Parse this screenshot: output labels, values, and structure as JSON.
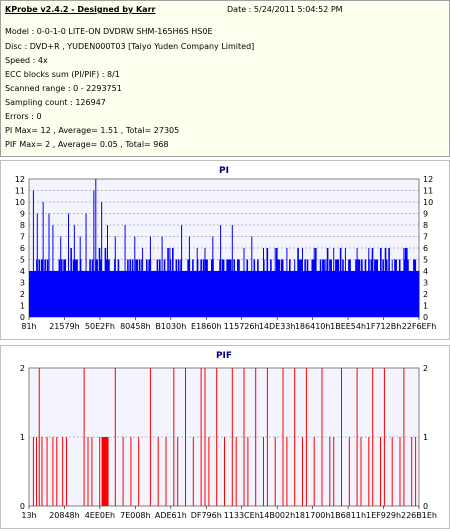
{
  "app_title": "KProbe v2.4.2 - Designed by Karr",
  "date_line": "Date : 5/24/2011 5:04:52 PM",
  "info_lines": [
    "Model : 0-0-1-0 LITE-ON DVDRW SHM-165H6S HS0E",
    "Disc : DVD+R , YUDEN000T03 [Taiyo Yuden Company Limited]",
    "Speed : 4x",
    "ECC blocks sum (PI/PIF) : 8/1",
    "Scanned range : 0 - 2293751",
    "Sampling count : 126947",
    "Errors : 0",
    "PI Max= 12 , Average= 1.51 , Total= 27305",
    "PIF Max= 2 , Average= 0.05 , Total= 968"
  ],
  "colors": {
    "pi_bar": "#0000ff",
    "pif_bar": "#ff0000",
    "axis_title": "#000080",
    "plot_bg": "#f4f4ff"
  },
  "chart_data": [
    {
      "type": "bar",
      "title": "PI",
      "ylim": [
        0,
        12
      ],
      "yticks": [
        0,
        1,
        2,
        3,
        4,
        5,
        6,
        7,
        8,
        9,
        10,
        11,
        12
      ],
      "grid": true,
      "xtick_labels": [
        "81h",
        "21579h",
        "50E2Fh",
        "80458h",
        "B1030h",
        "E1860h",
        "115726h",
        "14DE33h",
        "186410h",
        "1BEE54h",
        "1F712Bh",
        "22F6EFh"
      ],
      "x_range_hex": [
        "81h",
        "22F6EFh"
      ],
      "baseline_values": [
        4,
        4,
        5
      ],
      "max": 12,
      "average": 1.51,
      "peaks": [
        {
          "pos": 0.01,
          "v": 11
        },
        {
          "pos": 0.02,
          "v": 9
        },
        {
          "pos": 0.035,
          "v": 10
        },
        {
          "pos": 0.05,
          "v": 9
        },
        {
          "pos": 0.06,
          "v": 8
        },
        {
          "pos": 0.08,
          "v": 7
        },
        {
          "pos": 0.1,
          "v": 9
        },
        {
          "pos": 0.115,
          "v": 8
        },
        {
          "pos": 0.13,
          "v": 7
        },
        {
          "pos": 0.145,
          "v": 9
        },
        {
          "pos": 0.165,
          "v": 11
        },
        {
          "pos": 0.17,
          "v": 12
        },
        {
          "pos": 0.185,
          "v": 10
        },
        {
          "pos": 0.2,
          "v": 8
        },
        {
          "pos": 0.22,
          "v": 7
        },
        {
          "pos": 0.245,
          "v": 8
        },
        {
          "pos": 0.27,
          "v": 7
        },
        {
          "pos": 0.29,
          "v": 6
        },
        {
          "pos": 0.31,
          "v": 7
        },
        {
          "pos": 0.34,
          "v": 7
        },
        {
          "pos": 0.36,
          "v": 6
        },
        {
          "pos": 0.39,
          "v": 8
        },
        {
          "pos": 0.41,
          "v": 7
        },
        {
          "pos": 0.43,
          "v": 6
        },
        {
          "pos": 0.45,
          "v": 6
        },
        {
          "pos": 0.47,
          "v": 7
        },
        {
          "pos": 0.49,
          "v": 8
        },
        {
          "pos": 0.52,
          "v": 8
        },
        {
          "pos": 0.55,
          "v": 6
        },
        {
          "pos": 0.57,
          "v": 7
        },
        {
          "pos": 0.6,
          "v": 6
        },
        {
          "pos": 0.63,
          "v": 6
        },
        {
          "pos": 0.66,
          "v": 6
        },
        {
          "pos": 0.68,
          "v": 5
        },
        {
          "pos": 0.7,
          "v": 6
        },
        {
          "pos": 0.73,
          "v": 6
        },
        {
          "pos": 0.76,
          "v": 5
        },
        {
          "pos": 0.78,
          "v": 6
        },
        {
          "pos": 0.81,
          "v": 6
        },
        {
          "pos": 0.84,
          "v": 6
        },
        {
          "pos": 0.87,
          "v": 6
        },
        {
          "pos": 0.9,
          "v": 5
        },
        {
          "pos": 0.93,
          "v": 5
        },
        {
          "pos": 0.96,
          "v": 6
        },
        {
          "pos": 0.99,
          "v": 5
        }
      ]
    },
    {
      "type": "bar",
      "title": "PIF",
      "ylim": [
        0,
        2
      ],
      "yticks": [
        0,
        1,
        2
      ],
      "grid": true,
      "xtick_labels": [
        "13h",
        "20848h",
        "4EE0Eh",
        "7E008h",
        "ADE61h",
        "DF796h",
        "1133CEh",
        "14B002h",
        "181700h",
        "1B6811h",
        "1EF929h",
        "226B1Eh"
      ],
      "x_range_hex": [
        "13h",
        "226B1Eh"
      ],
      "max": 2,
      "average": 0.05,
      "bars": [
        {
          "pos": 0.01,
          "v": 1
        },
        {
          "pos": 0.018,
          "v": 1
        },
        {
          "pos": 0.025,
          "v": 2
        },
        {
          "pos": 0.032,
          "v": 1
        },
        {
          "pos": 0.045,
          "v": 1
        },
        {
          "pos": 0.06,
          "v": 1
        },
        {
          "pos": 0.07,
          "v": 1
        },
        {
          "pos": 0.085,
          "v": 1
        },
        {
          "pos": 0.095,
          "v": 1
        },
        {
          "pos": 0.14,
          "v": 2
        },
        {
          "pos": 0.15,
          "v": 1
        },
        {
          "pos": 0.16,
          "v": 1
        },
        {
          "pos": 0.18,
          "v": 1
        },
        {
          "pos": 0.188,
          "v": 1
        },
        {
          "pos": 0.192,
          "v": 1
        },
        {
          "pos": 0.196,
          "v": 1
        },
        {
          "pos": 0.2,
          "v": 1
        },
        {
          "pos": 0.22,
          "v": 2
        },
        {
          "pos": 0.24,
          "v": 1
        },
        {
          "pos": 0.26,
          "v": 1
        },
        {
          "pos": 0.28,
          "v": 1
        },
        {
          "pos": 0.31,
          "v": 2
        },
        {
          "pos": 0.33,
          "v": 1
        },
        {
          "pos": 0.35,
          "v": 1
        },
        {
          "pos": 0.37,
          "v": 2
        },
        {
          "pos": 0.38,
          "v": 1
        },
        {
          "pos": 0.4,
          "v": 2
        },
        {
          "pos": 0.42,
          "v": 1
        },
        {
          "pos": 0.44,
          "v": 2
        },
        {
          "pos": 0.45,
          "v": 2
        },
        {
          "pos": 0.46,
          "v": 1
        },
        {
          "pos": 0.48,
          "v": 2
        },
        {
          "pos": 0.5,
          "v": 1
        },
        {
          "pos": 0.52,
          "v": 2
        },
        {
          "pos": 0.53,
          "v": 1
        },
        {
          "pos": 0.55,
          "v": 2
        },
        {
          "pos": 0.56,
          "v": 1
        },
        {
          "pos": 0.58,
          "v": 2
        },
        {
          "pos": 0.6,
          "v": 1
        },
        {
          "pos": 0.61,
          "v": 2
        },
        {
          "pos": 0.63,
          "v": 1
        },
        {
          "pos": 0.65,
          "v": 2
        },
        {
          "pos": 0.66,
          "v": 1
        },
        {
          "pos": 0.68,
          "v": 2
        },
        {
          "pos": 0.7,
          "v": 1
        },
        {
          "pos": 0.71,
          "v": 2
        },
        {
          "pos": 0.73,
          "v": 1
        },
        {
          "pos": 0.75,
          "v": 2
        },
        {
          "pos": 0.77,
          "v": 1
        },
        {
          "pos": 0.78,
          "v": 1
        },
        {
          "pos": 0.8,
          "v": 2
        },
        {
          "pos": 0.82,
          "v": 1
        },
        {
          "pos": 0.84,
          "v": 2
        },
        {
          "pos": 0.85,
          "v": 1
        },
        {
          "pos": 0.87,
          "v": 1
        },
        {
          "pos": 0.88,
          "v": 2
        },
        {
          "pos": 0.9,
          "v": 1
        },
        {
          "pos": 0.91,
          "v": 2
        },
        {
          "pos": 0.93,
          "v": 1
        },
        {
          "pos": 0.95,
          "v": 1
        },
        {
          "pos": 0.96,
          "v": 2
        },
        {
          "pos": 0.98,
          "v": 1
        },
        {
          "pos": 0.99,
          "v": 1
        }
      ]
    }
  ]
}
